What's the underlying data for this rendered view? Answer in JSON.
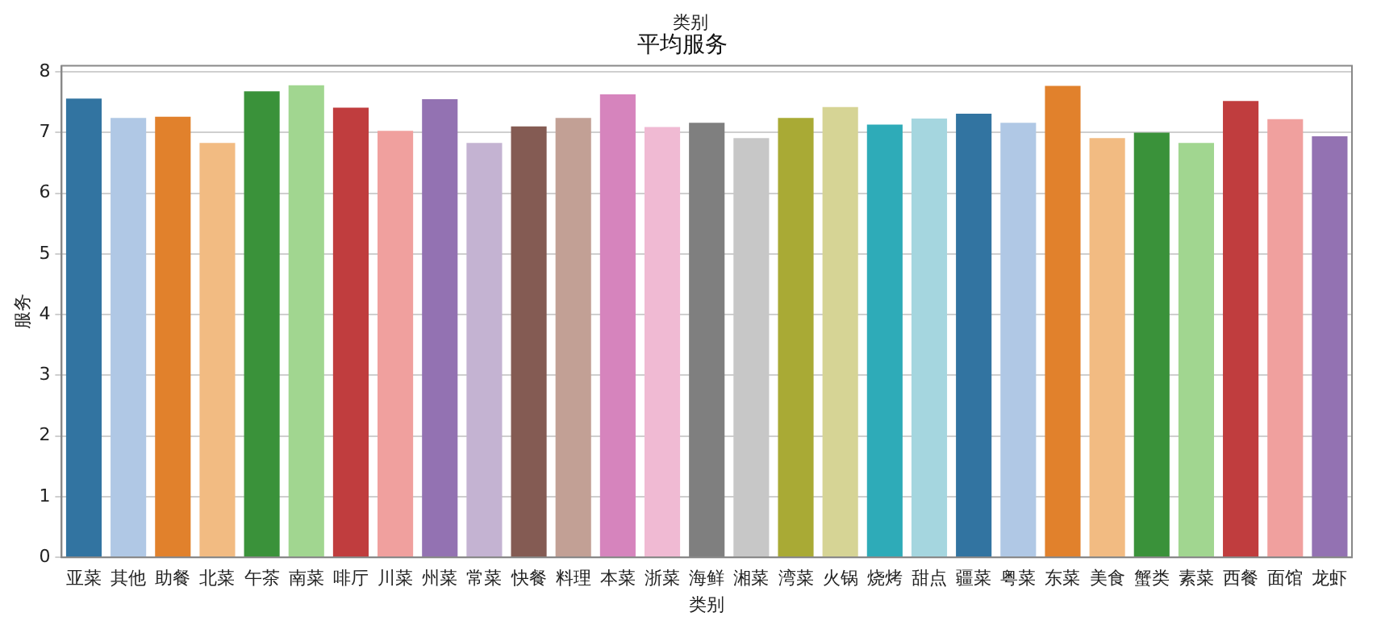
{
  "chart_data": {
    "type": "bar",
    "title": "平均服务",
    "xlabel": "类别",
    "ylabel": "服务",
    "annotations": [
      "类别"
    ],
    "categories": [
      "亚菜",
      "其他",
      "助餐",
      "北菜",
      "午茶",
      "南菜",
      "啡厅",
      "川菜",
      "州菜",
      "常菜",
      "快餐",
      "料理",
      "本菜",
      "浙菜",
      "海鲜",
      "湘菜",
      "湾菜",
      "火锅",
      "烧烤",
      "甜点",
      "疆菜",
      "粤菜",
      "东菜",
      "美食",
      "蟹类",
      "素菜",
      "西餐",
      "面馆",
      "龙虾"
    ],
    "values": [
      7.56,
      7.24,
      7.26,
      6.83,
      7.68,
      7.78,
      7.41,
      7.03,
      7.55,
      6.83,
      7.1,
      7.24,
      7.63,
      7.09,
      7.16,
      6.91,
      7.24,
      7.42,
      7.13,
      7.23,
      7.31,
      7.16,
      7.77,
      6.91,
      7.0,
      6.83,
      7.52,
      7.22,
      6.94
    ],
    "colors": [
      "#3274a1",
      "#b0c8e5",
      "#e1812c",
      "#f2bb82",
      "#3a923a",
      "#a1d690",
      "#c03d3e",
      "#f0a09e",
      "#9372b2",
      "#c4b3d2",
      "#845b53",
      "#c2a095",
      "#d684bd",
      "#f0bad3",
      "#7f7f7f",
      "#c7c7c7",
      "#a9aa35",
      "#d6d495",
      "#2eabb8",
      "#a5d6df",
      "#3274a1",
      "#b0c8e5",
      "#e1812c",
      "#f2bb82",
      "#3a923a",
      "#a1d690",
      "#c03d3e",
      "#f0a09e",
      "#9372b2"
    ],
    "ylim": [
      0,
      8.1
    ],
    "yticks": [
      0,
      1,
      2,
      3,
      4,
      5,
      6,
      7,
      8
    ],
    "grid": "y",
    "legend": false
  }
}
